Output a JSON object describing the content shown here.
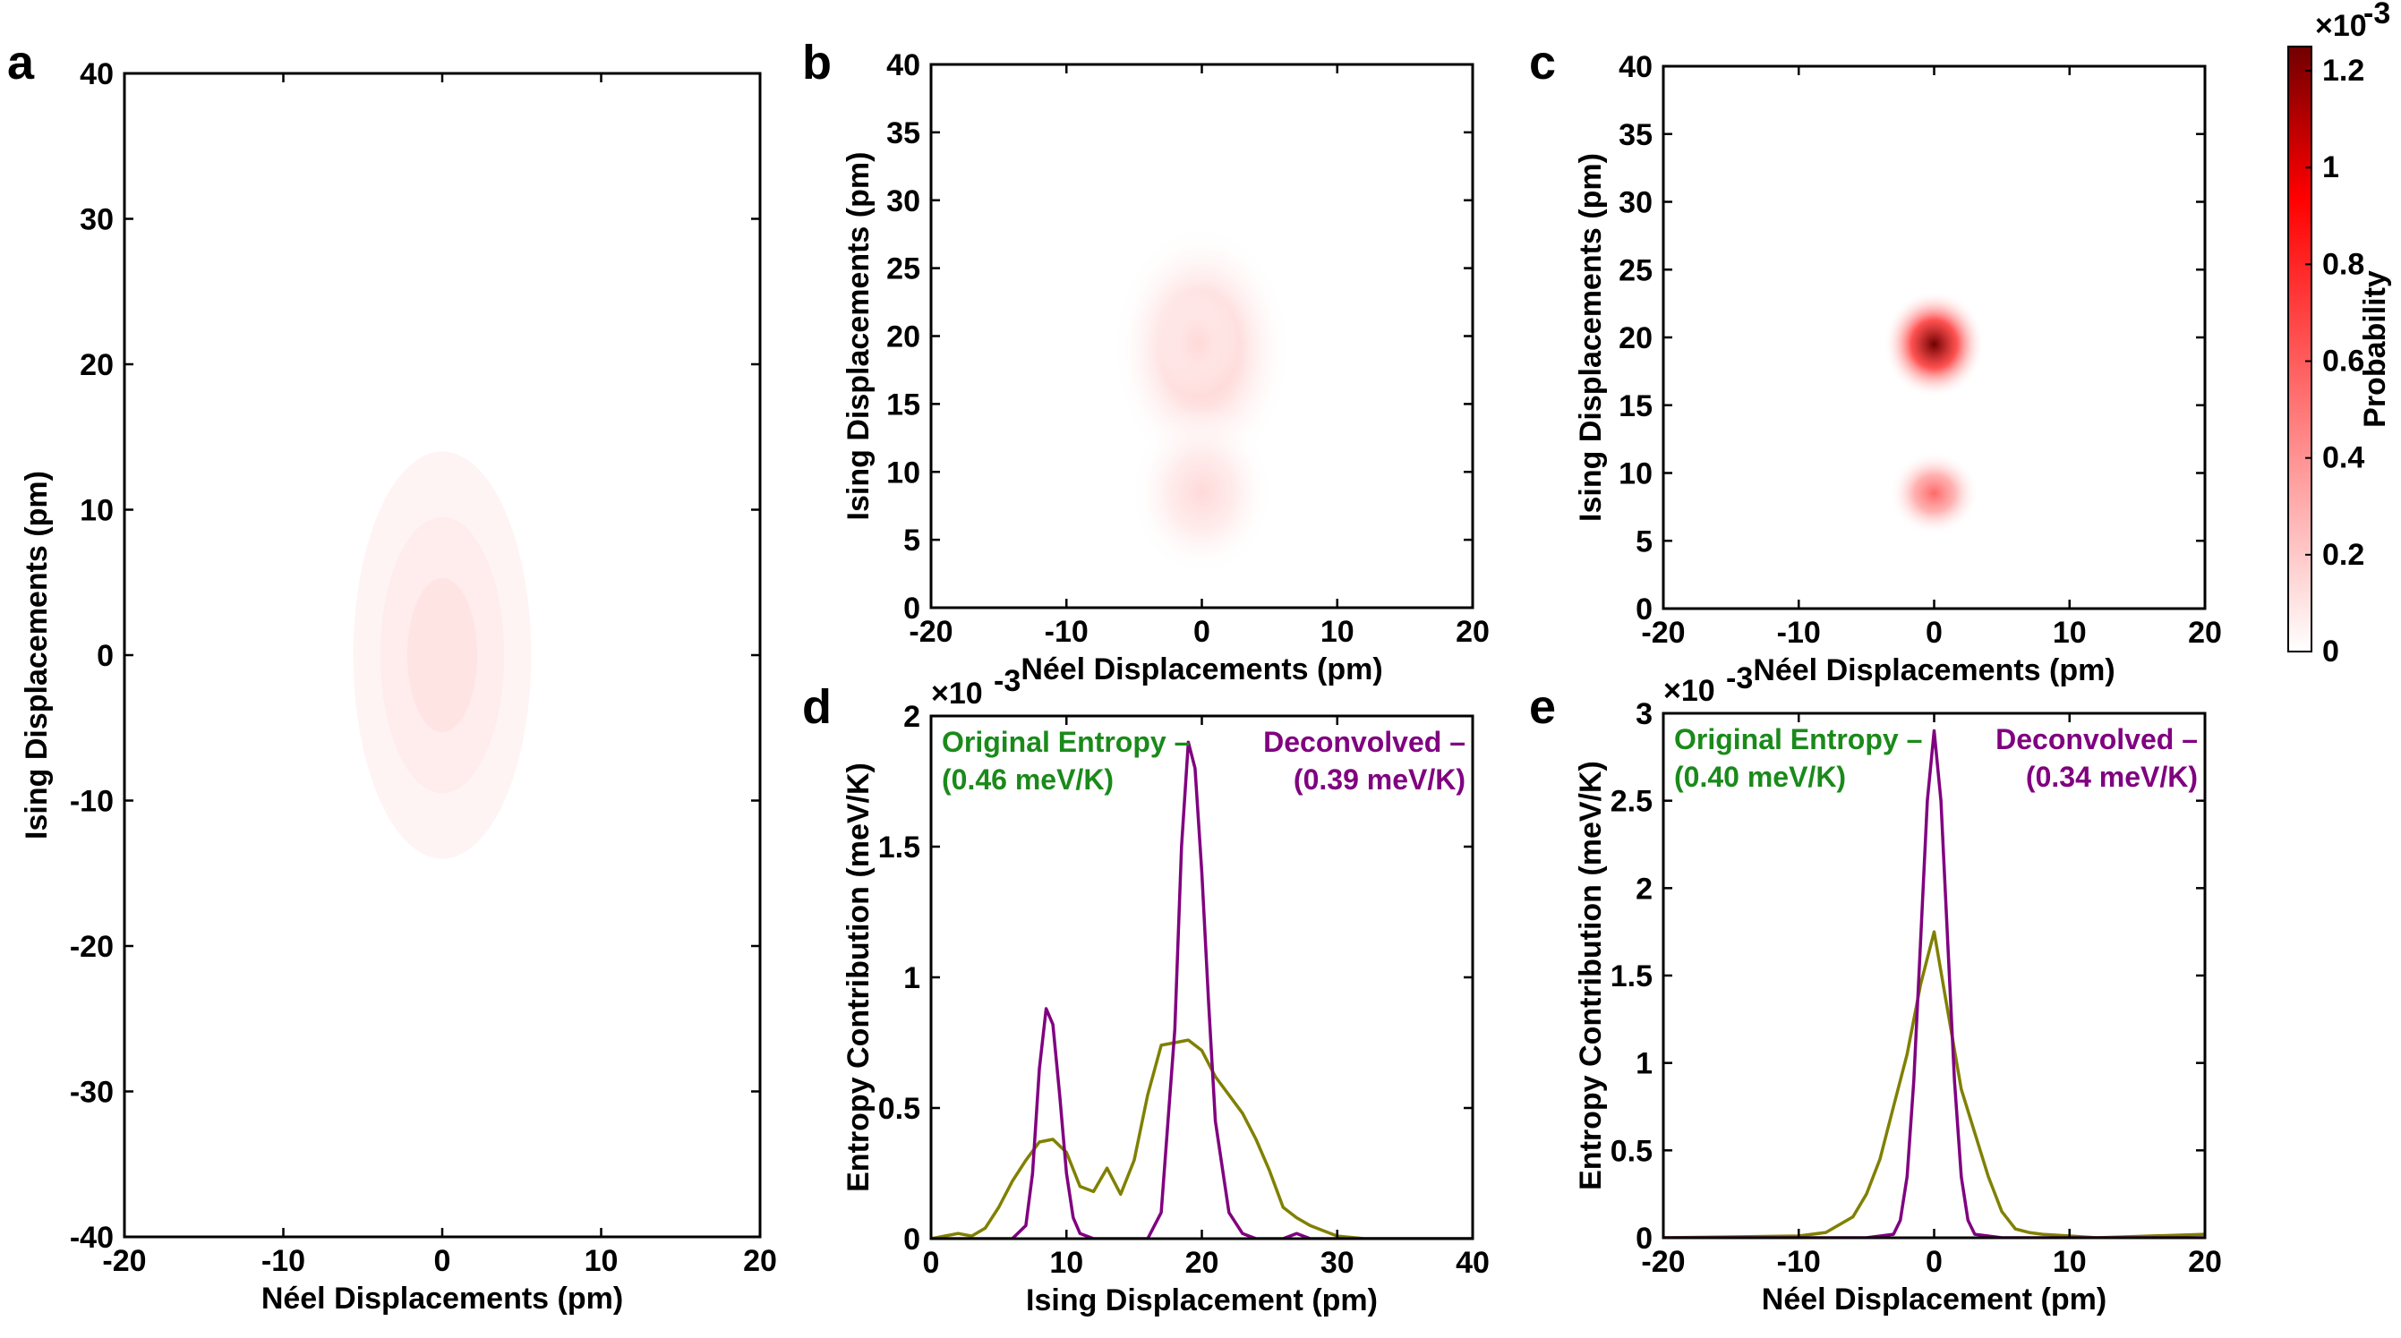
{
  "chart_data": [
    {
      "id": "a",
      "type": "heatmap",
      "panel_label": "a",
      "xlabel": "Néel Displacements (pm)",
      "ylabel": "Ising Displacements (pm)",
      "xlim": [
        -20,
        20
      ],
      "ylim": [
        -40,
        40
      ],
      "xticks": [
        -20,
        -10,
        0,
        10,
        20
      ],
      "yticks": [
        -40,
        -30,
        -20,
        -10,
        0,
        10,
        20,
        30,
        40
      ],
      "blobs": [
        {
          "name": "gaussian-contour",
          "cx": 0,
          "cy": 0,
          "levels": [
            {
              "rx": 5.6,
              "ry": 14,
              "p": 0.04
            },
            {
              "rx": 3.9,
              "ry": 9.5,
              "p": 0.07
            },
            {
              "rx": 2.2,
              "ry": 5.3,
              "p": 0.1
            }
          ]
        }
      ]
    },
    {
      "id": "b",
      "type": "heatmap",
      "panel_label": "b",
      "xlabel": "Néel Displacements (pm)",
      "ylabel": "Ising Displacements (pm)",
      "xlim": [
        -20,
        20
      ],
      "ylim": [
        0,
        40
      ],
      "xticks": [
        -20,
        -10,
        0,
        10,
        20
      ],
      "yticks": [
        0,
        5,
        10,
        15,
        20,
        25,
        30,
        35,
        40
      ],
      "blobs": [
        {
          "name": "upper-cluster",
          "cx": 0,
          "cy": 19,
          "sx": 3.0,
          "sy": 4.2,
          "p": 0.22
        },
        {
          "name": "upper-core",
          "cx": -0.3,
          "cy": 19.5,
          "sx": 1.4,
          "sy": 1.8,
          "p": 0.14
        },
        {
          "name": "lower-cluster",
          "cx": 0,
          "cy": 8.5,
          "sx": 2.4,
          "sy": 2.8,
          "p": 0.14
        }
      ]
    },
    {
      "id": "c",
      "type": "heatmap",
      "panel_label": "c",
      "xlabel": "Néel Displacements (pm)",
      "ylabel": "Ising Displacements (pm)",
      "xlim": [
        -20,
        20
      ],
      "ylim": [
        0,
        40
      ],
      "xticks": [
        -20,
        -10,
        0,
        10,
        20
      ],
      "yticks": [
        0,
        5,
        10,
        15,
        20,
        25,
        30,
        35,
        40
      ],
      "blobs": [
        {
          "name": "upper-peak",
          "cx": 0,
          "cy": 19.5,
          "sx": 1.7,
          "sy": 1.8,
          "p": 1.25
        },
        {
          "name": "lower-peak",
          "cx": 0,
          "cy": 8.5,
          "sx": 1.5,
          "sy": 1.4,
          "p": 0.55
        }
      ]
    },
    {
      "id": "d",
      "type": "line",
      "panel_label": "d",
      "xlabel": "Ising Displacement (pm)",
      "ylabel": "Entropy Contribution (meV/K)",
      "xlim": [
        0,
        40
      ],
      "ylim": [
        0,
        2
      ],
      "xticks": [
        0,
        10,
        20,
        30,
        40
      ],
      "yticks": [
        0,
        0.5,
        1,
        1.5,
        2
      ],
      "y_exponent": "×10",
      "y_exponent_power": "-3",
      "annotations": {
        "original_title": "Original Entropy –",
        "original_value": "(0.46 meV/K)",
        "deconvolved_title": "Deconvolved –",
        "deconvolved_value": "(0.39 meV/K)"
      },
      "series": [
        {
          "name": "Original Entropy",
          "color": "#808000",
          "x": [
            0,
            1,
            2,
            3,
            4,
            5,
            6,
            7,
            8,
            9,
            10,
            11,
            12,
            13,
            14,
            15,
            16,
            17,
            18,
            19,
            20,
            21,
            22,
            23,
            24,
            25,
            26,
            27,
            28,
            29,
            30,
            32,
            35,
            40
          ],
          "y": [
            0,
            0.01,
            0.02,
            0.01,
            0.04,
            0.12,
            0.22,
            0.3,
            0.37,
            0.38,
            0.33,
            0.2,
            0.18,
            0.27,
            0.17,
            0.3,
            0.55,
            0.74,
            0.75,
            0.76,
            0.72,
            0.62,
            0.55,
            0.48,
            0.38,
            0.26,
            0.12,
            0.08,
            0.05,
            0.03,
            0.01,
            0.0,
            0.0,
            0.0
          ]
        },
        {
          "name": "Deconvolved",
          "color": "#800080",
          "x": [
            0,
            5,
            6,
            7,
            7.5,
            8,
            8.5,
            9,
            9.5,
            10,
            10.5,
            11,
            12,
            14,
            15,
            16,
            17,
            18,
            18.5,
            19,
            19.5,
            20,
            20.5,
            21,
            22,
            23,
            24,
            26,
            27,
            28,
            30,
            40
          ],
          "y": [
            0,
            0,
            0,
            0.05,
            0.25,
            0.65,
            0.88,
            0.82,
            0.55,
            0.25,
            0.08,
            0.02,
            0,
            0,
            0,
            0,
            0.1,
            0.8,
            1.5,
            1.9,
            1.8,
            1.4,
            0.9,
            0.45,
            0.1,
            0.02,
            0,
            0,
            0.02,
            0,
            0,
            0
          ]
        }
      ]
    },
    {
      "id": "e",
      "type": "line",
      "panel_label": "e",
      "xlabel": "Néel Displacement (pm)",
      "ylabel": "Entropy Contribution (meV/K)",
      "xlim": [
        -20,
        20
      ],
      "ylim": [
        0,
        3
      ],
      "xticks": [
        -20,
        -10,
        0,
        10,
        20
      ],
      "yticks": [
        0,
        0.5,
        1,
        1.5,
        2,
        2.5,
        3
      ],
      "y_exponent": "×10",
      "y_exponent_power": "-3",
      "annotations": {
        "original_title": "Original Entropy –",
        "original_value": "(0.40 meV/K)",
        "deconvolved_title": "Deconvolved –",
        "deconvolved_value": "(0.34 meV/K)"
      },
      "series": [
        {
          "name": "Original Entropy",
          "color": "#808000",
          "x": [
            -20,
            -10,
            -8,
            -6,
            -5,
            -4,
            -3,
            -2,
            -1,
            0,
            1,
            2,
            3,
            4,
            5,
            6,
            7,
            8,
            10,
            12,
            20
          ],
          "y": [
            0,
            0.01,
            0.03,
            0.12,
            0.25,
            0.45,
            0.75,
            1.05,
            1.45,
            1.75,
            1.3,
            0.85,
            0.6,
            0.35,
            0.15,
            0.05,
            0.03,
            0.02,
            0.01,
            0.0,
            0.02
          ]
        },
        {
          "name": "Deconvolved",
          "color": "#800080",
          "x": [
            -20,
            -5,
            -3,
            -2.5,
            -2,
            -1.5,
            -1,
            -0.5,
            0,
            0.5,
            1,
            1.5,
            2,
            2.5,
            3,
            5,
            20
          ],
          "y": [
            0,
            0,
            0.02,
            0.1,
            0.35,
            0.9,
            1.7,
            2.5,
            2.9,
            2.5,
            1.7,
            0.9,
            0.35,
            0.1,
            0.02,
            0,
            0
          ]
        }
      ]
    }
  ],
  "colorbar": {
    "label": "Probability",
    "ticks": [
      0,
      0.2,
      0.4,
      0.6,
      0.8,
      1,
      1.2
    ],
    "tick_labels": [
      "0",
      "0.2",
      "0.4",
      "0.6",
      "0.8",
      "1",
      "1.2"
    ],
    "max": 1.25,
    "exponent": "×10",
    "exponent_power": "-3",
    "colors": [
      "#ffffff",
      "#ff0000",
      "#700000"
    ]
  }
}
